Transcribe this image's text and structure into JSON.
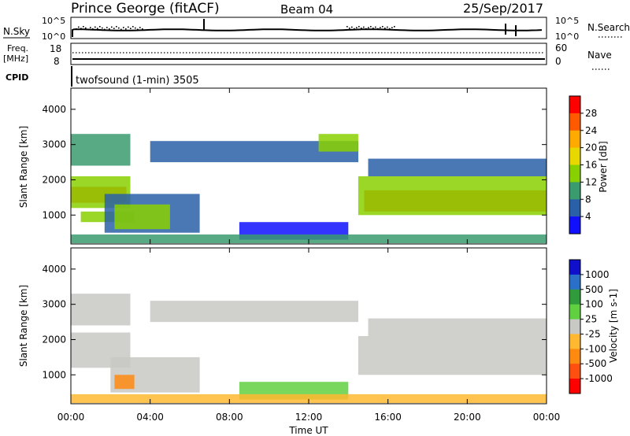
{
  "header": {
    "title": "Prince George (fitACF)",
    "beam": "Beam 04",
    "date": "25/Sep/2017"
  },
  "noise_panel": {
    "left_label": "N.Sky",
    "right_label": "N.Search",
    "left_ticks": [
      "10^5",
      "10^0"
    ],
    "right_ticks": [
      "10^5",
      "10^0"
    ]
  },
  "freq_panel": {
    "left_label_top": "Freq.",
    "left_label_bottom": "[MHz]",
    "left_ticks": [
      "18",
      "8"
    ],
    "right_label": "Nave",
    "right_ticks": [
      "60",
      "0"
    ]
  },
  "cpid": {
    "label": "CPID",
    "text": "twofsound (1-min) 3505"
  },
  "chart_data": [
    {
      "type": "heatmap",
      "name": "power",
      "ylabel": "Slant Range [km]",
      "ylim": [
        180,
        4600
      ],
      "yticks": [
        "1000",
        "2000",
        "3000",
        "4000"
      ],
      "xlim_hours": [
        0,
        24
      ],
      "colorbar": {
        "label": "Power [dB]",
        "labels": [
          "28",
          "24",
          "20",
          "16",
          "12",
          "8",
          "4"
        ],
        "colors": [
          "#ff0000",
          "#ff5a00",
          "#ffaa00",
          "#e8d800",
          "#88d000",
          "#3a9b6e",
          "#2a60a8",
          "#1010ff"
        ]
      },
      "bands": [
        {
          "t0": 0.0,
          "t1": 2.8,
          "r0": 1350,
          "r1": 1800,
          "color": "#ff3a00"
        },
        {
          "t0": 0.0,
          "t1": 3.0,
          "r0": 1200,
          "r1": 2100,
          "color": "#88d000"
        },
        {
          "t0": 0.0,
          "t1": 3.0,
          "r0": 2400,
          "r1": 3300,
          "color": "#3a9b6e"
        },
        {
          "t0": 0.5,
          "t1": 3.2,
          "r0": 800,
          "r1": 1100,
          "color": "#88d000"
        },
        {
          "t0": 1.7,
          "t1": 6.5,
          "r0": 500,
          "r1": 1600,
          "color": "#2a60a8"
        },
        {
          "t0": 2.2,
          "t1": 5.0,
          "r0": 600,
          "r1": 1300,
          "color": "#88d000"
        },
        {
          "t0": 4.0,
          "t1": 14.5,
          "r0": 2500,
          "r1": 3100,
          "color": "#2a60a8"
        },
        {
          "t0": 8.5,
          "t1": 14.0,
          "r0": 300,
          "r1": 800,
          "color": "#1010ff"
        },
        {
          "t0": 12.5,
          "t1": 14.5,
          "r0": 2800,
          "r1": 3300,
          "color": "#88d000"
        },
        {
          "t0": 14.8,
          "t1": 24.0,
          "r0": 1100,
          "r1": 1700,
          "color": "#ff3a00"
        },
        {
          "t0": 14.5,
          "t1": 24.0,
          "r0": 1000,
          "r1": 2100,
          "color": "#88d000"
        },
        {
          "t0": 15.0,
          "t1": 24.0,
          "r0": 2100,
          "r1": 2600,
          "color": "#2a60a8"
        },
        {
          "t0": 0.0,
          "t1": 24.0,
          "r0": 200,
          "r1": 450,
          "color": "#3a9b6e"
        }
      ]
    },
    {
      "type": "heatmap",
      "name": "velocity",
      "ylabel": "Slant Range [km]",
      "ylim": [
        180,
        4600
      ],
      "yticks": [
        "1000",
        "2000",
        "3000",
        "4000"
      ],
      "xlim_hours": [
        0,
        24
      ],
      "xticks": [
        "00:00",
        "04:00",
        "08:00",
        "12:00",
        "16:00",
        "20:00",
        "00:00"
      ],
      "xlabel": "Time UT",
      "colorbar": {
        "label": "Velocity [m s-1]",
        "labels": [
          "1000",
          "500",
          "100",
          "25",
          "-25",
          "-100",
          "-500",
          "-1000"
        ],
        "colors": [
          "#1010cc",
          "#2a70c8",
          "#2f9b3a",
          "#60d040",
          "#c8c8c4",
          "#ffb830",
          "#ff8a10",
          "#ff5010",
          "#ff0000"
        ]
      },
      "bands": [
        {
          "t0": 0.0,
          "t1": 3.0,
          "r0": 1200,
          "r1": 2200,
          "color": "#c8c8c4"
        },
        {
          "t0": 0.0,
          "t1": 3.0,
          "r0": 2400,
          "r1": 3300,
          "color": "#c8c8c4"
        },
        {
          "t0": 2.0,
          "t1": 6.5,
          "r0": 500,
          "r1": 1500,
          "color": "#c8c8c4"
        },
        {
          "t0": 2.2,
          "t1": 3.2,
          "r0": 600,
          "r1": 1000,
          "color": "#ff8a10"
        },
        {
          "t0": 4.0,
          "t1": 14.5,
          "r0": 2500,
          "r1": 3100,
          "color": "#c8c8c4"
        },
        {
          "t0": 8.5,
          "t1": 14.0,
          "r0": 300,
          "r1": 800,
          "color": "#60d040"
        },
        {
          "t0": 14.5,
          "t1": 24.0,
          "r0": 1000,
          "r1": 2100,
          "color": "#c8c8c4"
        },
        {
          "t0": 15.0,
          "t1": 24.0,
          "r0": 2100,
          "r1": 2600,
          "color": "#c8c8c4"
        },
        {
          "t0": 0.0,
          "t1": 24.0,
          "r0": 200,
          "r1": 450,
          "color": "#ffb830"
        }
      ]
    }
  ]
}
